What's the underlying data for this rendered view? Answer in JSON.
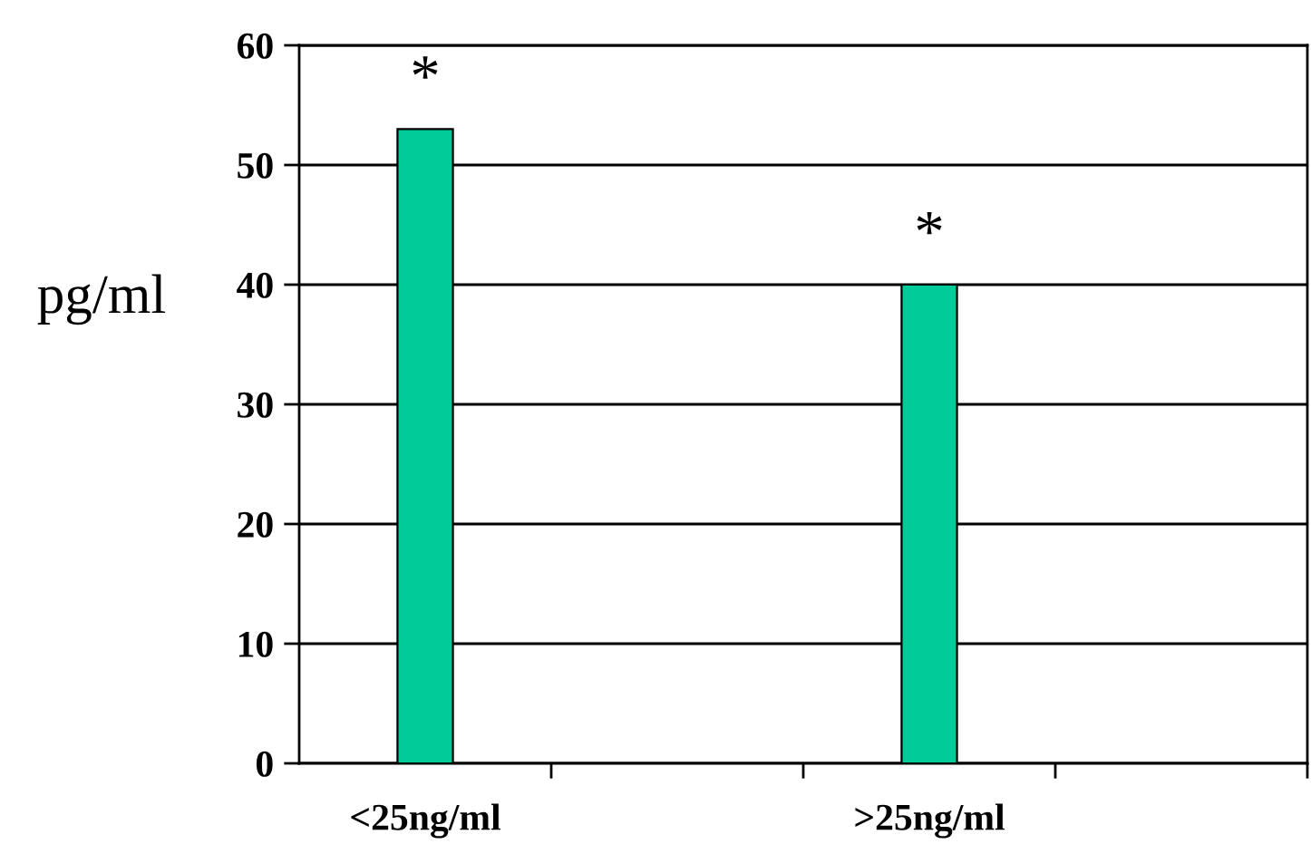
{
  "chart_data": {
    "type": "bar",
    "ylabel": "pg/ml",
    "categories": [
      "<25ng/ml",
      null,
      ">25ng/ml",
      null
    ],
    "values": [
      53,
      null,
      40,
      null
    ],
    "color": "#00cc99",
    "ylim": [
      0,
      60
    ],
    "yticks": [
      0,
      10,
      20,
      30,
      40,
      50,
      60
    ],
    "grid": "y",
    "annotations": [
      "*",
      "*"
    ]
  }
}
